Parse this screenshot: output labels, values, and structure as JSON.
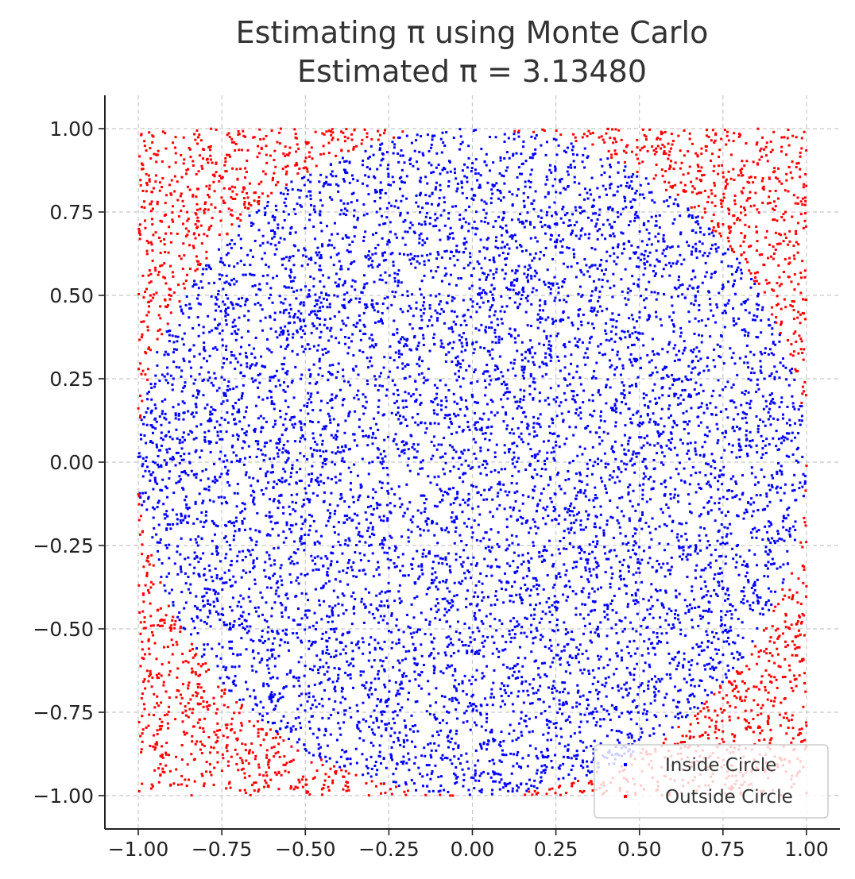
{
  "chart_data": {
    "type": "scatter",
    "title": "Estimating π using Monte Carlo",
    "subtitle": "Estimated π = 3.13480",
    "xlabel": "",
    "ylabel": "",
    "xlim": [
      -1.1,
      1.1
    ],
    "ylim": [
      -1.1,
      1.1
    ],
    "xticks": [
      -1.0,
      -0.75,
      -0.5,
      -0.25,
      0.0,
      0.25,
      0.5,
      0.75,
      1.0
    ],
    "yticks": [
      -1.0,
      -0.75,
      -0.5,
      -0.25,
      0.0,
      0.25,
      0.5,
      0.75,
      1.0
    ],
    "xtick_labels": [
      "−1.00",
      "−0.75",
      "−0.50",
      "−0.25",
      "0.00",
      "0.25",
      "0.50",
      "0.75",
      "1.00"
    ],
    "ytick_labels": [
      "−1.00",
      "−0.75",
      "−0.50",
      "−0.25",
      "0.00",
      "0.25",
      "0.50",
      "0.75",
      "1.00"
    ],
    "grid": true,
    "legend_position": "lower-right",
    "sample_region": {
      "x": [
        -1.0,
        1.0
      ],
      "y": [
        -1.0,
        1.0
      ]
    },
    "circle_radius": 1.0,
    "series": [
      {
        "name": "Inside Circle",
        "color": "#0000ff",
        "rule": "x^2 + y^2 <= 1"
      },
      {
        "name": "Outside Circle",
        "color": "#ff0000",
        "rule": "x^2 + y^2 > 1"
      }
    ]
  }
}
